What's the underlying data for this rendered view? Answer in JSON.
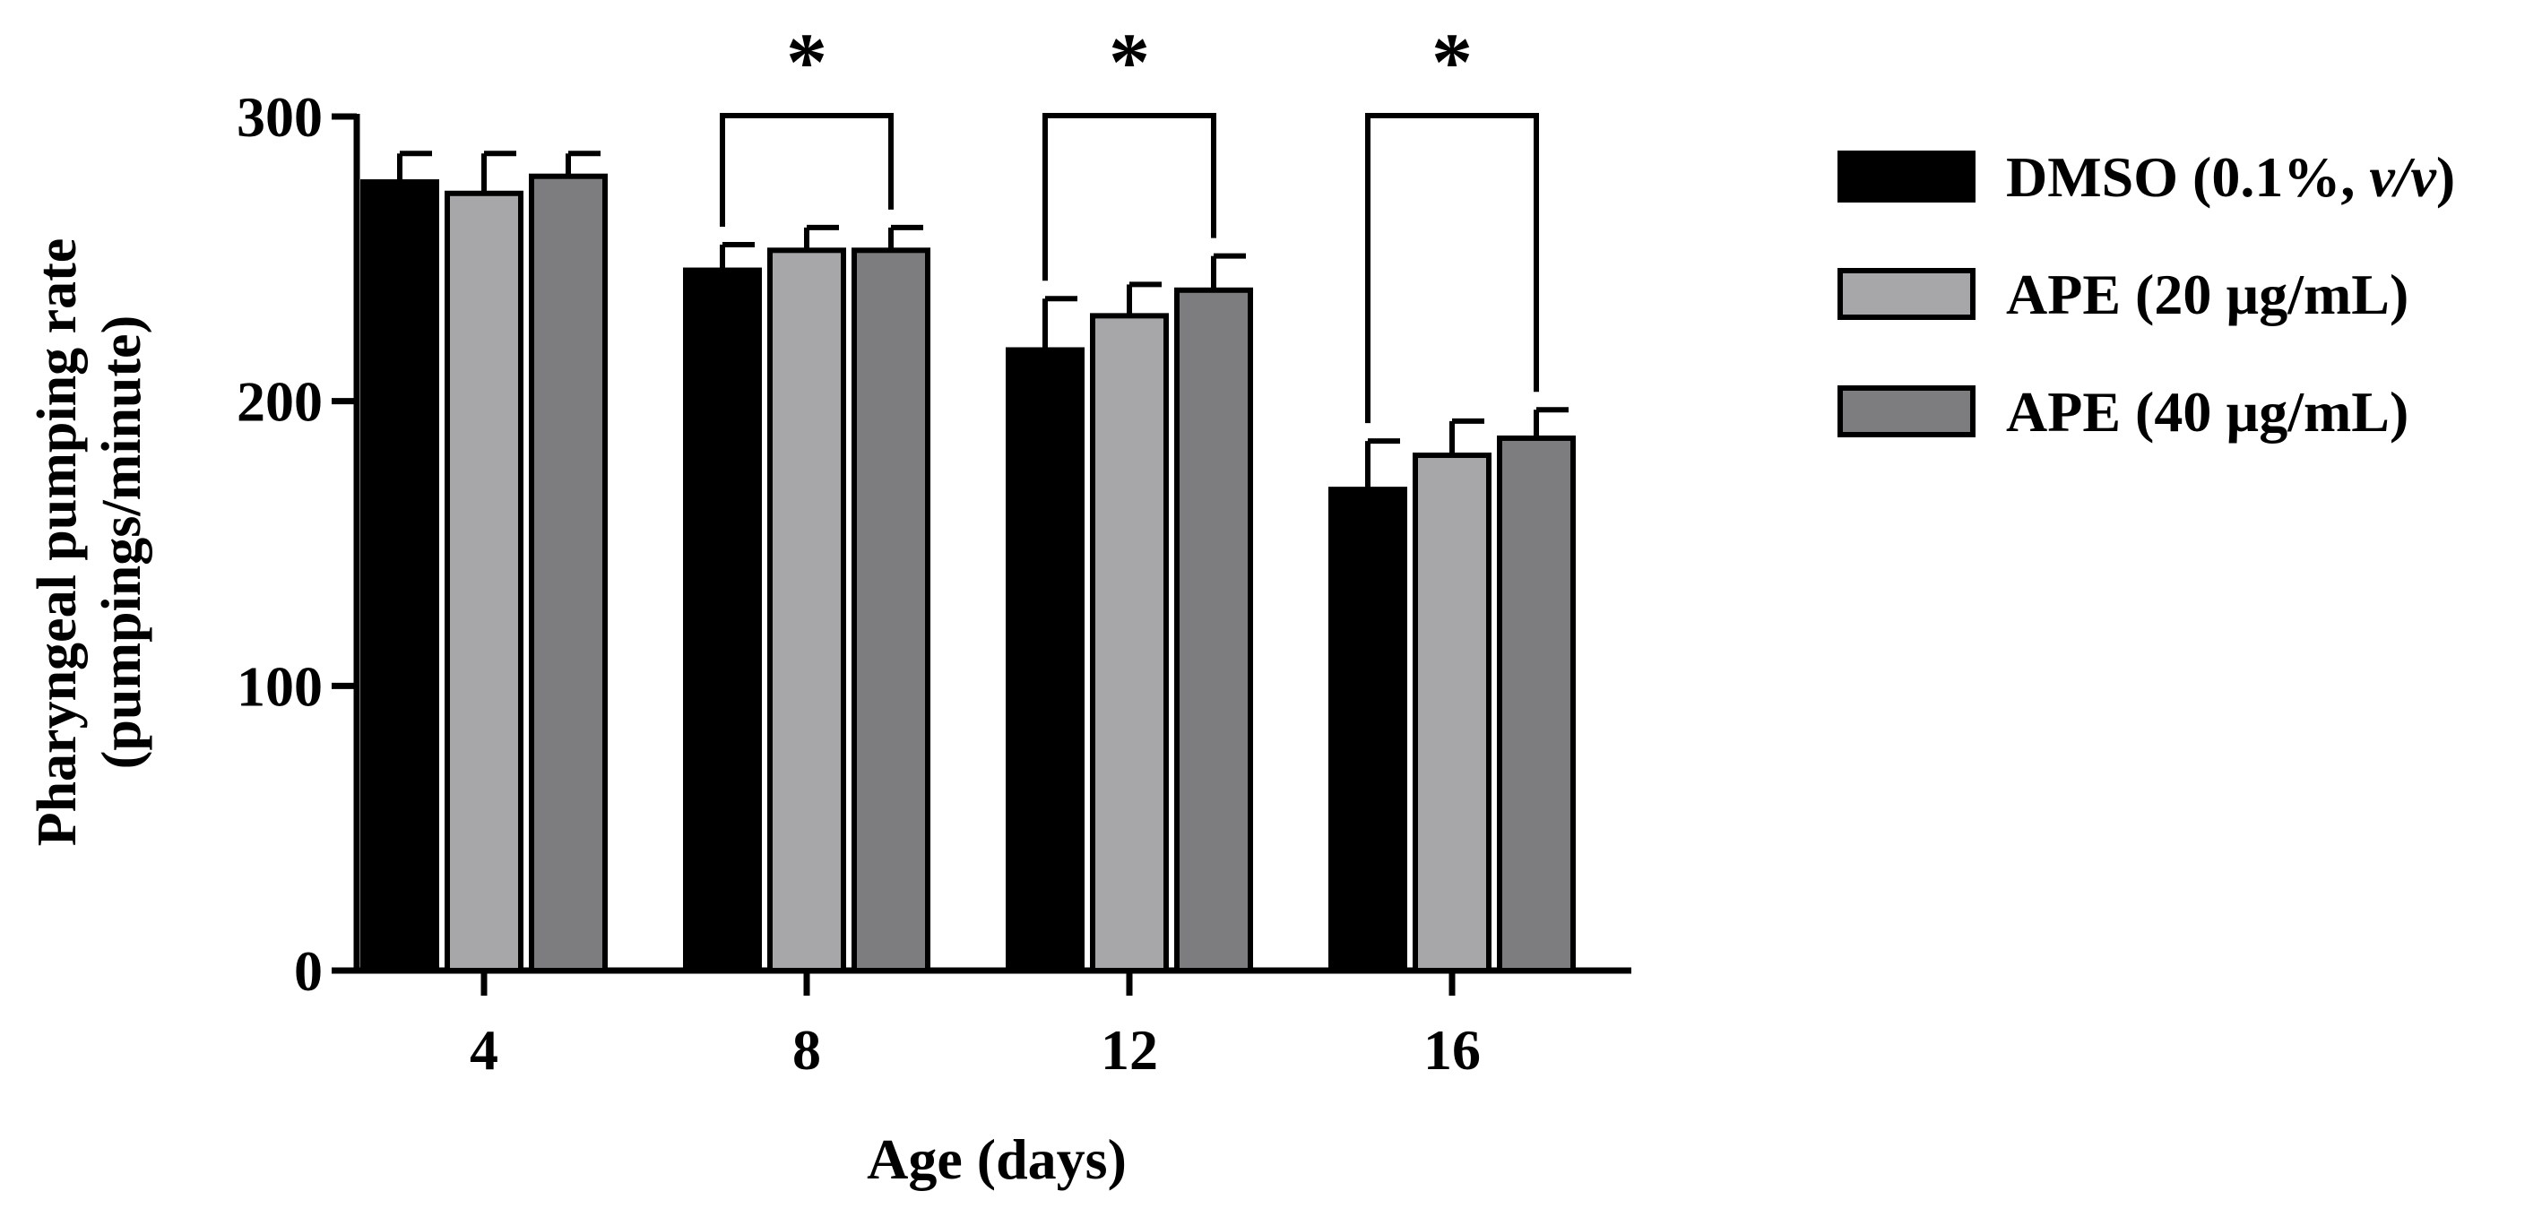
{
  "chart_data": {
    "type": "bar",
    "title": "",
    "xlabel": "Age (days)",
    "ylabel_line1": "Pharyngeal pumping rate",
    "ylabel_line2": "(pumpings/minute)",
    "ylim": [
      0,
      300
    ],
    "yticks": [
      0,
      100,
      200,
      300
    ],
    "categories": [
      "4",
      "8",
      "12",
      "16"
    ],
    "series": [
      {
        "name": "DMSO (0.1%, v/v)",
        "legend_main": "DMSO (0.1%, ",
        "legend_italic": "v/v",
        "legend_end": ")",
        "color": "#000000",
        "values": [
          277,
          246,
          218,
          169
        ],
        "errors": [
          10,
          9,
          18,
          17
        ]
      },
      {
        "name": "APE (20 µg/mL)",
        "legend_main": "APE (20 µg/mL)",
        "legend_italic": "",
        "legend_end": "",
        "color": "#a7a7aa",
        "values": [
          273,
          253,
          230,
          181
        ],
        "errors": [
          14,
          8,
          11,
          12
        ]
      },
      {
        "name": "APE (40 µg/mL)",
        "legend_main": "APE (40 µg/mL)",
        "legend_italic": "",
        "legend_end": "",
        "color": "#7d7d7f",
        "values": [
          279,
          253,
          239,
          187
        ],
        "errors": [
          8,
          8,
          12,
          10
        ]
      }
    ],
    "significance": [
      {
        "category": "8",
        "from_series": 0,
        "to_series": 2,
        "label": "*"
      },
      {
        "category": "12",
        "from_series": 0,
        "to_series": 2,
        "label": "*"
      },
      {
        "category": "16",
        "from_series": 0,
        "to_series": 2,
        "label": "*"
      }
    ],
    "legend_position": "right"
  }
}
